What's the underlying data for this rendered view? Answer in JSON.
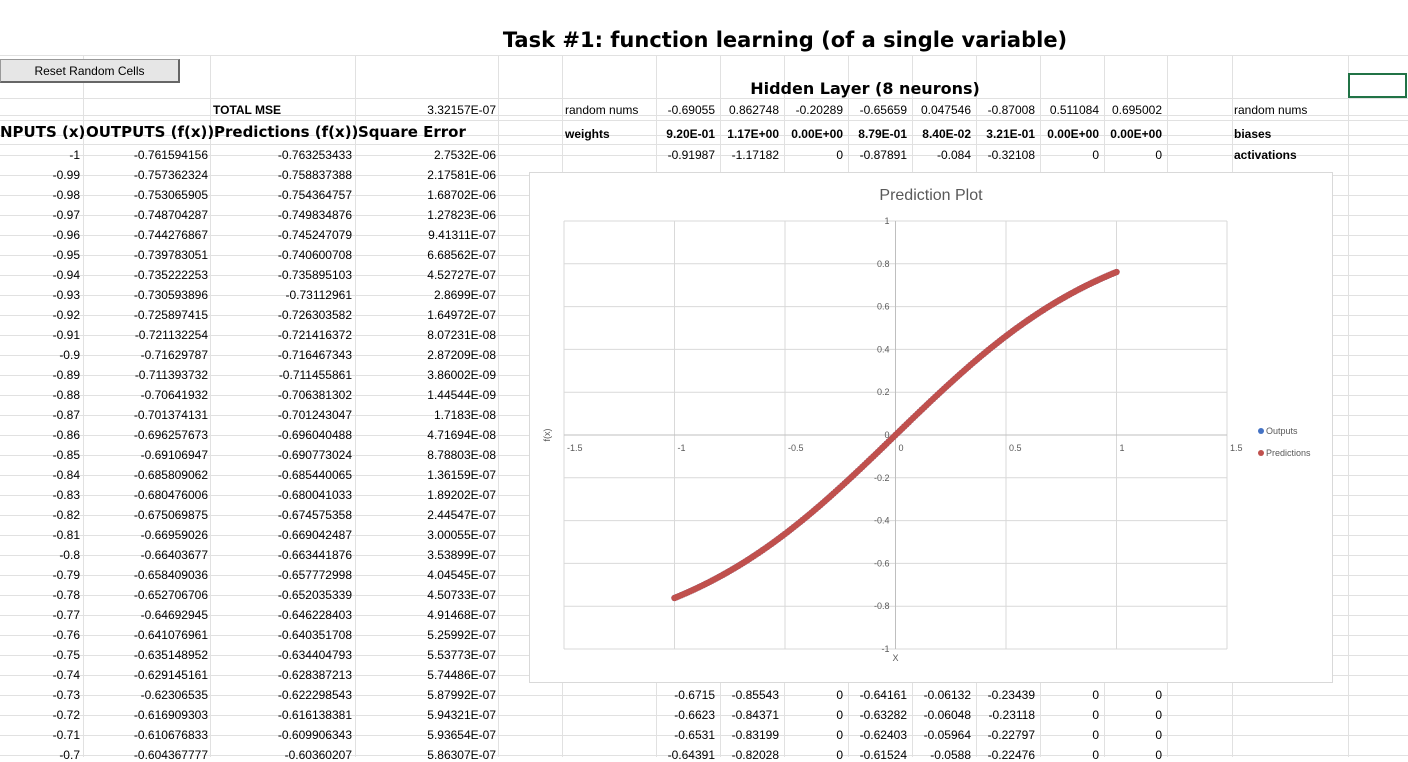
{
  "title": "Task #1: function learning (of a single variable)",
  "reset_button": "Reset Random Cells",
  "hidden_layer_title": "Hidden Layer (8 neurons)",
  "total_mse_label": "TOTAL MSE",
  "total_mse_value": "3.32157E-07",
  "headers": {
    "inputs": "NPUTS (x)",
    "outputs": "OUTPUTS (f(x))",
    "predictions": "Predictions (f(x))",
    "square_error": "Square Error"
  },
  "rows": [
    [
      "-1",
      "-0.761594156",
      "-0.763253433",
      "2.7532E-06"
    ],
    [
      "-0.99",
      "-0.757362324",
      "-0.758837388",
      "2.17581E-06"
    ],
    [
      "-0.98",
      "-0.753065905",
      "-0.754364757",
      "1.68702E-06"
    ],
    [
      "-0.97",
      "-0.748704287",
      "-0.749834876",
      "1.27823E-06"
    ],
    [
      "-0.96",
      "-0.744276867",
      "-0.745247079",
      "9.41311E-07"
    ],
    [
      "-0.95",
      "-0.739783051",
      "-0.740600708",
      "6.68562E-07"
    ],
    [
      "-0.94",
      "-0.735222253",
      "-0.735895103",
      "4.52727E-07"
    ],
    [
      "-0.93",
      "-0.730593896",
      "-0.73112961",
      "2.8699E-07"
    ],
    [
      "-0.92",
      "-0.725897415",
      "-0.726303582",
      "1.64972E-07"
    ],
    [
      "-0.91",
      "-0.721132254",
      "-0.721416372",
      "8.07231E-08"
    ],
    [
      "-0.9",
      "-0.71629787",
      "-0.716467343",
      "2.87209E-08"
    ],
    [
      "-0.89",
      "-0.711393732",
      "-0.711455861",
      "3.86002E-09"
    ],
    [
      "-0.88",
      "-0.70641932",
      "-0.706381302",
      "1.44544E-09"
    ],
    [
      "-0.87",
      "-0.701374131",
      "-0.701243047",
      "1.7183E-08"
    ],
    [
      "-0.86",
      "-0.696257673",
      "-0.696040488",
      "4.71694E-08"
    ],
    [
      "-0.85",
      "-0.69106947",
      "-0.690773024",
      "8.78803E-08"
    ],
    [
      "-0.84",
      "-0.685809062",
      "-0.685440065",
      "1.36159E-07"
    ],
    [
      "-0.83",
      "-0.680476006",
      "-0.680041033",
      "1.89202E-07"
    ],
    [
      "-0.82",
      "-0.675069875",
      "-0.674575358",
      "2.44547E-07"
    ],
    [
      "-0.81",
      "-0.66959026",
      "-0.669042487",
      "3.00055E-07"
    ],
    [
      "-0.8",
      "-0.66403677",
      "-0.663441876",
      "3.53899E-07"
    ],
    [
      "-0.79",
      "-0.658409036",
      "-0.657772998",
      "4.04545E-07"
    ],
    [
      "-0.78",
      "-0.652706706",
      "-0.652035339",
      "4.50733E-07"
    ],
    [
      "-0.77",
      "-0.64692945",
      "-0.646228403",
      "4.91468E-07"
    ],
    [
      "-0.76",
      "-0.641076961",
      "-0.640351708",
      "5.25992E-07"
    ],
    [
      "-0.75",
      "-0.635148952",
      "-0.634404793",
      "5.53773E-07"
    ],
    [
      "-0.74",
      "-0.629145161",
      "-0.628387213",
      "5.74486E-07"
    ],
    [
      "-0.73",
      "-0.62306535",
      "-0.622298543",
      "5.87992E-07"
    ],
    [
      "-0.72",
      "-0.616909303",
      "-0.616138381",
      "5.94321E-07"
    ],
    [
      "-0.71",
      "-0.610676833",
      "-0.609906343",
      "5.93654E-07"
    ],
    [
      "-0.7",
      "-0.604367777",
      "-0.60360207",
      "5.86307E-07"
    ]
  ],
  "hidden": {
    "random_label": "random nums",
    "random": [
      "-0.69055",
      "0.862748",
      "-0.20289",
      "-0.65659",
      "0.047546",
      "-0.87008",
      "0.511084",
      "0.695002"
    ],
    "weights_label": "weights",
    "weights": [
      "9.20E-01",
      "1.17E+00",
      "0.00E+00",
      "8.79E-01",
      "8.40E-02",
      "3.21E-01",
      "0.00E+00",
      "0.00E+00"
    ],
    "first_row": [
      "-0.91987",
      "-1.17182",
      "0",
      "-0.87891",
      "-0.084",
      "-0.32108",
      "0",
      "0"
    ],
    "lower_rows": [
      [
        "-0.6715",
        "-0.85543",
        "0",
        "-0.64161",
        "-0.06132",
        "-0.23439",
        "0",
        "0"
      ],
      [
        "-0.6623",
        "-0.84371",
        "0",
        "-0.63282",
        "-0.06048",
        "-0.23118",
        "0",
        "0"
      ],
      [
        "-0.6531",
        "-0.83199",
        "0",
        "-0.62403",
        "-0.05964",
        "-0.22797",
        "0",
        "0"
      ],
      [
        "-0.64391",
        "-0.82028",
        "0",
        "-0.61524",
        "-0.0588",
        "-0.22476",
        "0",
        "0"
      ]
    ]
  },
  "right_labels": {
    "random_nums": "random nums",
    "biases": "biases",
    "activations": "activations"
  },
  "colors": {
    "outputs": "#4472C4",
    "predictions": "#C0504D",
    "selection": "#217346"
  },
  "chart_data": {
    "type": "scatter",
    "title": "Prediction Plot",
    "xlabel": "X",
    "ylabel": "f(x)",
    "xlim": [
      -1.5,
      1.5
    ],
    "ylim": [
      -1,
      1
    ],
    "x_ticks": [
      "-1.5",
      "-1",
      "-0.5",
      "0",
      "0.5",
      "1",
      "1.5"
    ],
    "y_ticks": [
      "-1",
      "-0.8",
      "-0.6",
      "-0.4",
      "-0.2",
      "0",
      "0.2",
      "0.4",
      "0.6",
      "0.8",
      "1"
    ],
    "grid": true,
    "legend_position": "right",
    "series": [
      {
        "name": "Outputs",
        "function": "tanh",
        "x_range": [
          -1,
          1
        ],
        "step": 0.01
      },
      {
        "name": "Predictions",
        "function": "tanh",
        "x_range": [
          -1,
          1
        ],
        "step": 0.01
      }
    ]
  }
}
